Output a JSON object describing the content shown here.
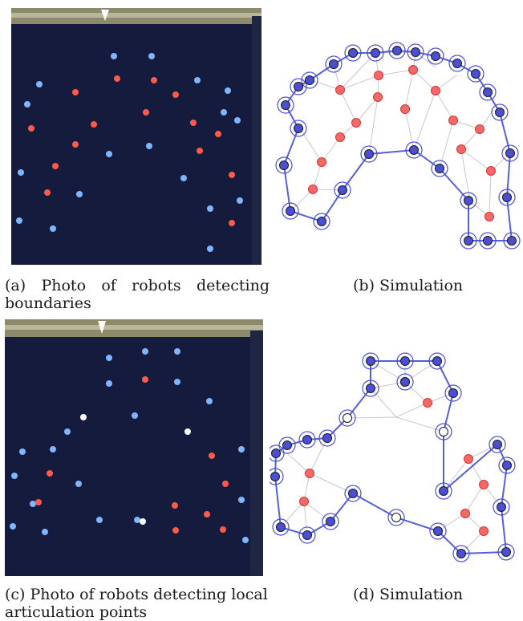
{
  "figure": {
    "panels": [
      {
        "id": "a",
        "caption": "(a) Photo of robots detecting boundaries"
      },
      {
        "id": "b",
        "caption": "(b) Simulation"
      },
      {
        "id": "c",
        "caption": "(c) Photo of robots detecting local articulation points"
      },
      {
        "id": "d",
        "caption": "(d) Simulation"
      }
    ]
  },
  "colors": {
    "boundary_robot": "#4a4fd6",
    "interior_robot": "#f06a6a",
    "articulation_robot": "#ffffff",
    "edge": "#c8c8c8",
    "boundary_edge": "#5560d8",
    "photo_background": "#121a3a",
    "photo_blue_led": "#7fb6ff",
    "photo_red_led": "#ff5a4a"
  }
}
